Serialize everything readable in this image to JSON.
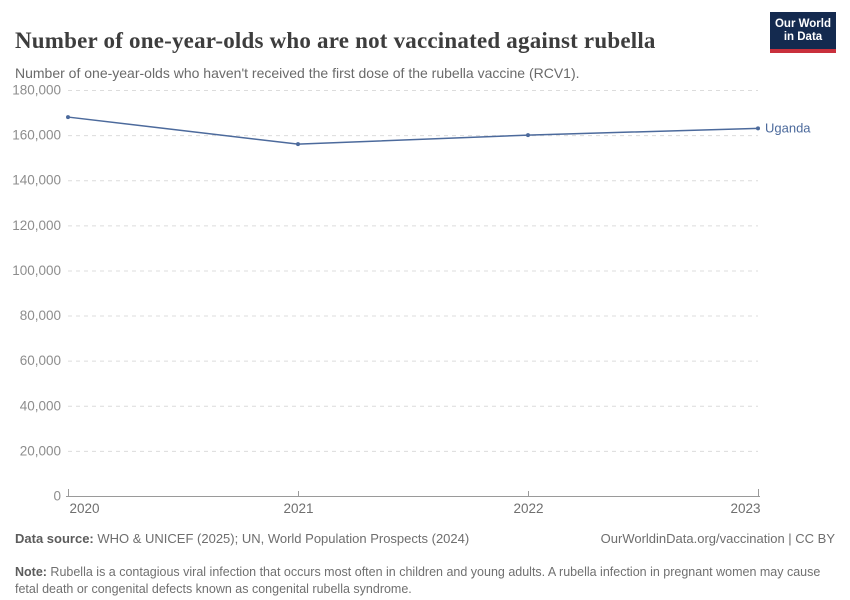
{
  "header": {
    "title": "Number of one-year-olds who are not vaccinated against rubella",
    "subtitle": "Number of one-year-olds who haven't received the first dose of the rubella vaccine (RCV1).",
    "logo_line1": "Our World",
    "logo_line2": "in Data"
  },
  "chart_data": {
    "type": "line",
    "title": "Number of one-year-olds who are not vaccinated against rubella",
    "x": [
      2020,
      2021,
      2022,
      2023
    ],
    "series": [
      {
        "name": "Uganda",
        "values": [
          168000,
          156000,
          160000,
          163000
        ],
        "color": "#4c6a9c"
      }
    ],
    "xlabel": "",
    "ylabel": "",
    "ylim": [
      0,
      180000
    ],
    "ytick_step": 20000,
    "grid": "horizontal-dashed",
    "legend_position": "line-end-label"
  },
  "colors": {
    "line": "#4c6a9c",
    "entity_label": "#4c6a9c",
    "grid": "#dcdcdc",
    "axis": "#9a9a9a",
    "y_tick_text": "#8d8d8d",
    "x_tick_text": "#6f6f6f",
    "logo_bg": "#142a4f",
    "logo_stripe": "#c9303c"
  },
  "footer": {
    "datasource_label": "Data source:",
    "datasource_text": " WHO & UNICEF (2025); UN, World Population Prospects (2024)",
    "link": "OurWorldinData.org/vaccination | CC BY",
    "note_label": "Note:",
    "note_text": " Rubella is a contagious viral infection that occurs most often in children and young adults. A rubella infection in pregnant women may cause fetal death or congenital defects known as congenital rubella syndrome."
  }
}
